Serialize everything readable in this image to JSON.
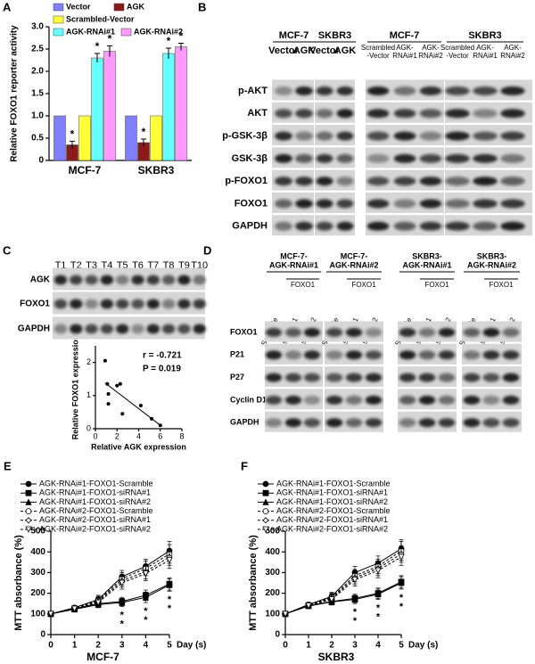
{
  "chart_data": [
    {
      "panel": "A",
      "type": "bar",
      "ylabel": "Relative FOXO1 reporter activity",
      "categories": [
        "MCF-7",
        "SKBR3"
      ],
      "series": [
        {
          "name": "Vector",
          "color": "#8080ff",
          "values": [
            1,
            1
          ]
        },
        {
          "name": "AGK",
          "color": "#8b1a1a",
          "values": [
            0.35,
            0.4
          ],
          "errors": [
            0.08,
            0.08
          ],
          "annotations": [
            "*",
            "*"
          ]
        },
        {
          "name": "Scrambled-Vector",
          "color": "#ffff33",
          "values": [
            1,
            1
          ]
        },
        {
          "name": "AGK-RNAi#1",
          "color": "#66ffff",
          "values": [
            2.3,
            2.4
          ],
          "errors": [
            0.1,
            0.12
          ],
          "annotations": [
            "*",
            "*"
          ]
        },
        {
          "name": "AGK-RNAi#2",
          "color": "#ff99ff",
          "values": [
            2.45,
            2.55
          ],
          "errors": [
            0.12,
            0.08
          ],
          "annotations": [
            "*",
            "*"
          ]
        }
      ],
      "ylim": [
        0,
        3
      ],
      "yticks": [
        0,
        0.5,
        {
          "value": 1,
          "label": "1.0"
        },
        1.5,
        {
          "value": 2,
          "label": "2.0"
        },
        2.5,
        {
          "value": 3,
          "label": "3.0"
        }
      ]
    },
    {
      "panel": "C",
      "type": "scatter",
      "xlabel": "Relative AGK expression",
      "ylabel": "Relative FOXO1 expression",
      "x": [
        0.9,
        1.1,
        1.2,
        1.2,
        2.0,
        2.3,
        2.5,
        4.2,
        5.2,
        6.0
      ],
      "values": [
        2.05,
        1.35,
        1.05,
        0.75,
        1.3,
        1.35,
        0.45,
        0.7,
        0.3,
        0.1
      ],
      "xlim": [
        0,
        8
      ],
      "xticks": [
        0,
        2,
        4,
        6,
        8
      ],
      "ylim": [
        0,
        2.5
      ],
      "yticks": [
        0,
        1,
        2
      ],
      "annotations": [
        "r = -0.721",
        "P = 0.019"
      ],
      "trendline": true
    },
    {
      "panel": "E",
      "type": "line",
      "title": "MCF-7",
      "xunit": "Day (s)",
      "ylabel": "MTT absorbance (%)",
      "x": [
        0,
        1,
        2,
        3,
        4,
        5
      ],
      "xlim": [
        0,
        5
      ],
      "xticks": [
        0,
        1,
        2,
        3,
        4,
        5
      ],
      "ylim": [
        0,
        500
      ],
      "yticks": [
        0,
        100,
        200,
        300,
        400,
        500
      ],
      "series": [
        {
          "name": "AGK-RNAi#1-FOXO1-Scramble",
          "marker": "circle-filled",
          "line_style": "solid",
          "values": [
            100,
            130,
            170,
            280,
            330,
            405
          ],
          "errors": [
            5,
            10,
            20,
            30,
            35,
            45
          ]
        },
        {
          "name": "AGK-RNAi#1-FOXO1-siRNA#1",
          "marker": "square-filled",
          "line_style": "solid",
          "values": [
            100,
            125,
            150,
            160,
            190,
            245
          ],
          "errors": [
            5,
            10,
            15,
            20,
            25,
            30
          ]
        },
        {
          "name": "AGK-RNAi#1-FOXO1-siRNA#2",
          "marker": "triangle-filled",
          "line_style": "solid",
          "values": [
            100,
            122,
            145,
            155,
            180,
            240
          ],
          "errors": [
            5,
            10,
            15,
            20,
            25,
            30
          ]
        },
        {
          "name": "AGK-RNAi#2-FOXO1-Scramble",
          "marker": "circle-open",
          "line_style": "dashed",
          "values": [
            100,
            130,
            165,
            270,
            320,
            390
          ],
          "errors": [
            5,
            10,
            20,
            30,
            35,
            45
          ]
        },
        {
          "name": "AGK-RNAi#2-FOXO1-siRNA#1",
          "marker": "diamond-open",
          "line_style": "dashed",
          "values": [
            100,
            128,
            160,
            260,
            305,
            375
          ],
          "errors": [
            5,
            10,
            20,
            30,
            35,
            40
          ]
        },
        {
          "name": "AGK-RNAi#2-FOXO1-siRNA#2",
          "marker": "triangle-down-open",
          "line_style": "dashed",
          "values": [
            100,
            125,
            155,
            250,
            295,
            360
          ],
          "errors": [
            5,
            10,
            20,
            30,
            35,
            40
          ]
        }
      ],
      "significance": {
        "x": [
          3,
          4,
          5
        ],
        "labels": [
          [
            "*",
            "*"
          ],
          [
            "*",
            "*"
          ],
          [
            "*",
            "*"
          ]
        ]
      }
    },
    {
      "panel": "F",
      "type": "line",
      "title": "SKBR3",
      "xunit": "Day (s)",
      "ylabel": "MTT absorbance (%)",
      "x": [
        0,
        1,
        2,
        3,
        4,
        5
      ],
      "xlim": [
        0,
        5
      ],
      "xticks": [
        0,
        1,
        2,
        3,
        4,
        5
      ],
      "ylim": [
        0,
        500
      ],
      "yticks": [
        0,
        100,
        200,
        300,
        400,
        500
      ],
      "series": [
        {
          "name": "AGK-RNAi#1-FOXO1-Scramble",
          "marker": "circle-filled",
          "line_style": "solid",
          "values": [
            100,
            145,
            185,
            300,
            345,
            415
          ],
          "errors": [
            5,
            10,
            20,
            30,
            35,
            45
          ]
        },
        {
          "name": "AGK-RNAi#1-FOXO1-siRNA#1",
          "marker": "square-filled",
          "line_style": "solid",
          "values": [
            100,
            140,
            160,
            175,
            200,
            255
          ],
          "errors": [
            5,
            10,
            15,
            20,
            25,
            30
          ]
        },
        {
          "name": "AGK-RNAi#1-FOXO1-siRNA#2",
          "marker": "triangle-filled",
          "line_style": "solid",
          "values": [
            100,
            138,
            158,
            170,
            195,
            250
          ],
          "errors": [
            5,
            10,
            15,
            20,
            25,
            30
          ]
        },
        {
          "name": "AGK-RNAi#2-FOXO1-Scramble",
          "marker": "circle-open",
          "line_style": "dashed",
          "values": [
            100,
            145,
            180,
            285,
            330,
            405
          ],
          "errors": [
            5,
            10,
            20,
            30,
            35,
            45
          ]
        },
        {
          "name": "AGK-RNAi#2-FOXO1-siRNA#1",
          "marker": "diamond-open",
          "line_style": "dashed",
          "values": [
            100,
            142,
            175,
            275,
            320,
            390
          ],
          "errors": [
            5,
            10,
            20,
            30,
            35,
            40
          ]
        },
        {
          "name": "AGK-RNAi#2-FOXO1-siRNA#2",
          "marker": "triangle-down-open",
          "line_style": "dashed",
          "values": [
            100,
            140,
            170,
            265,
            310,
            375
          ],
          "errors": [
            5,
            10,
            20,
            30,
            35,
            40
          ]
        }
      ],
      "significance": {
        "x": [
          3,
          4,
          5
        ],
        "labels": [
          [
            "*",
            "*"
          ],
          [
            "*",
            "*"
          ],
          [
            "*",
            "*"
          ]
        ]
      }
    }
  ],
  "blot_B": {
    "panel": "B",
    "rows": [
      "p-AKT",
      "AKT",
      "p-GSK-3β",
      "GSK-3β",
      "p-FOXO1",
      "FOXO1",
      "GAPDH"
    ],
    "groups": [
      {
        "name": "MCF-7",
        "lanes": [
          [
            "Vector"
          ],
          [
            "AGK"
          ]
        ]
      },
      {
        "name": "SKBR3",
        "lanes": [
          [
            "Vector"
          ],
          [
            "AGK"
          ]
        ]
      },
      {
        "name": "MCF-7",
        "lanes": [
          [
            "Scrambled",
            "-Vector"
          ],
          [
            "AGK-",
            "RNAi#1"
          ],
          [
            "AGK-",
            "RNAi#2"
          ]
        ]
      },
      {
        "name": "SKBR3",
        "lanes": [
          [
            "Scrambled",
            "-Vector"
          ],
          [
            "AGK-",
            "RNAi#1"
          ],
          [
            "AGK-",
            "RNAi#2"
          ]
        ]
      }
    ]
  },
  "blot_C": {
    "lanes": [
      "T1",
      "T2",
      "T3",
      "T4",
      "T5",
      "T6",
      "T7",
      "T8",
      "T9",
      "T10"
    ],
    "rows": [
      "AGK",
      "FOXO1",
      "GAPDH"
    ]
  },
  "blot_D": {
    "panel": "D",
    "rows": [
      "FOXO1",
      "P21",
      "P27",
      "Cyclin D1",
      "GAPDH"
    ],
    "groups": [
      {
        "name": [
          "MCF-7-",
          "AGK-RNAi#1"
        ],
        "subgroup": "FOXO1",
        "lanes": [
          "Scramble",
          "siRNA#1",
          "siRNA#2"
        ]
      },
      {
        "name": [
          "MCF-7-",
          "AGK-RNAi#2"
        ],
        "subgroup": "FOXO1",
        "lanes": [
          "Scramble",
          "siRNA#1",
          "siRNA#2"
        ]
      },
      {
        "name": [
          "SKBR3-",
          "AGK-RNAi#1"
        ],
        "subgroup": "FOXO1",
        "lanes": [
          "Scramble",
          "siRNA#1",
          "siRNA#2"
        ]
      },
      {
        "name": [
          "SKBR3-",
          "AGK-RNAi#2"
        ],
        "subgroup": "FOXO1",
        "lanes": [
          "Scramble",
          "siRNA#1",
          "siRNA#2"
        ]
      }
    ]
  }
}
